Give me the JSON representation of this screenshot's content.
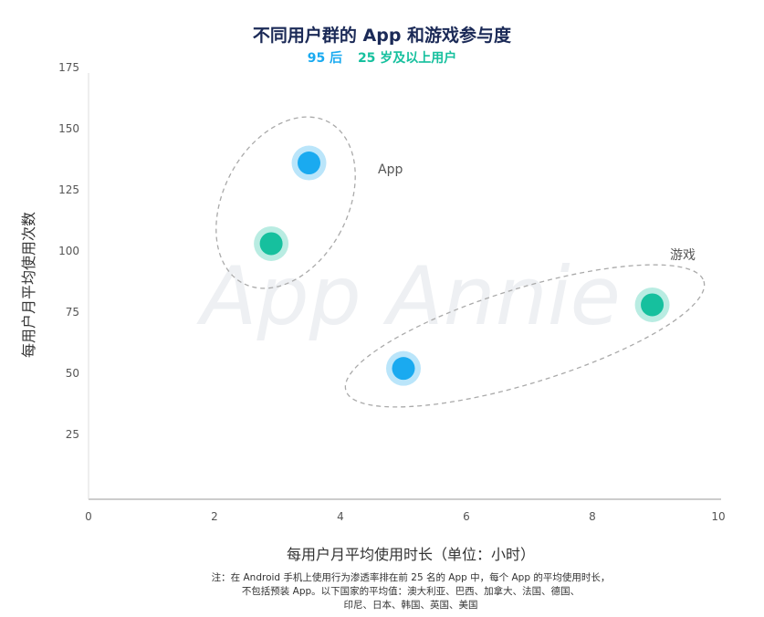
{
  "chart_data": {
    "type": "scatter",
    "title": "不同用户群的 App 和游戏参与度",
    "legend": [
      {
        "name": "95 后",
        "color": "#1aaaf0"
      },
      {
        "name": "25 岁及以上用户",
        "color": "#16c09e"
      }
    ],
    "xlabel": "每用户月平均使用时长（单位：小时）",
    "ylabel": "每用户月平均使用次数",
    "xlim": [
      0,
      10
    ],
    "ylim": [
      0,
      175
    ],
    "xticks": [
      0,
      2,
      4,
      6,
      8,
      10
    ],
    "yticks": [
      25,
      50,
      75,
      100,
      125,
      150,
      175
    ],
    "grid": false,
    "series": [
      {
        "name": "95 后",
        "color": "#1aaaf0",
        "points": [
          {
            "x": 3.5,
            "y": 136,
            "group": "App"
          },
          {
            "x": 5.0,
            "y": 52,
            "group": "游戏"
          }
        ]
      },
      {
        "name": "25 岁及以上用户",
        "color": "#16c09e",
        "points": [
          {
            "x": 2.9,
            "y": 103,
            "group": "App"
          },
          {
            "x": 8.95,
            "y": 78,
            "group": "游戏"
          }
        ]
      }
    ],
    "annotations": [
      "App",
      "游戏"
    ],
    "watermark": "App Annie"
  },
  "note": {
    "lines": [
      "注：在 Android 手机上使用行为渗透率排在前 25 名的 App 中，每个 App 的平均使用时长，",
      "不包括预装 App。以下国家的平均值：澳大利亚、巴西、加拿大、法国、德国、",
      "印尼、日本、韩国、英国、美国"
    ]
  }
}
